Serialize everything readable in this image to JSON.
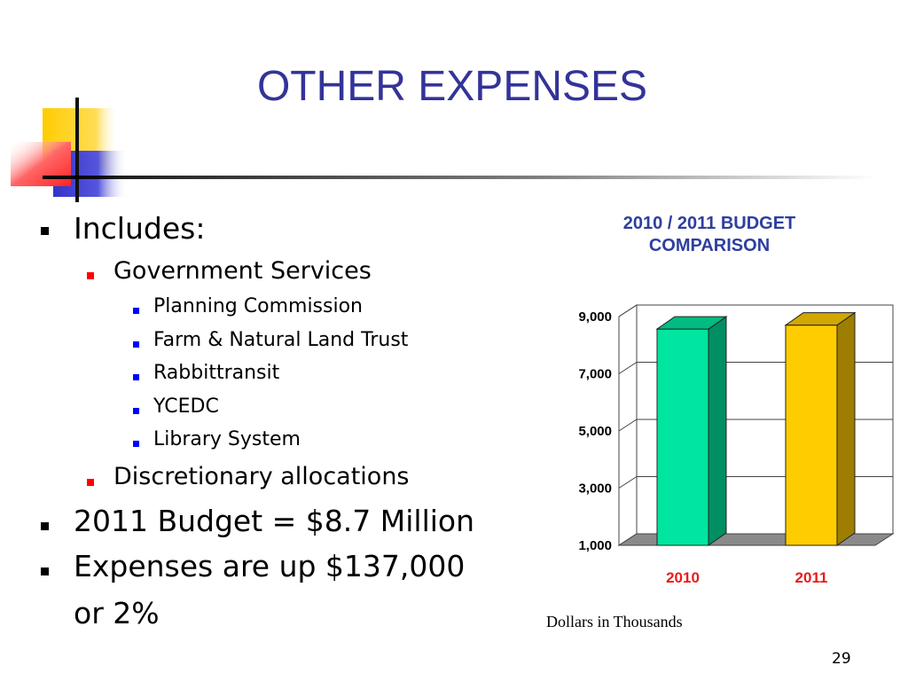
{
  "slide": {
    "title": "OTHER EXPENSES",
    "page_number": "29",
    "colors": {
      "title": "#333399",
      "accent_yellow": "#ffcc00",
      "accent_blue": "#3333cc",
      "accent_red": "#ff3333"
    }
  },
  "bullets": [
    {
      "level": 1,
      "text": "Includes:"
    },
    {
      "level": 2,
      "text": "Government Services"
    },
    {
      "level": 3,
      "text": "Planning Commission"
    },
    {
      "level": 3,
      "text": "Farm & Natural Land Trust"
    },
    {
      "level": 3,
      "text": "Rabbittransit"
    },
    {
      "level": 3,
      "text": "YCEDC"
    },
    {
      "level": 3,
      "text": "Library System"
    },
    {
      "level": 2,
      "text": "Discretionary allocations"
    },
    {
      "level": 1,
      "text": "2011 Budget = $8.7 Million"
    },
    {
      "level": 1,
      "text": "Expenses are up $137,000"
    },
    {
      "level": 1,
      "text": "or 2%",
      "continuation": true
    }
  ],
  "chart_data": {
    "type": "bar",
    "title_lines": [
      "2010 / 2011 BUDGET",
      "COMPARISON"
    ],
    "categories": [
      "2010",
      "2011"
    ],
    "values": [
      8563,
      8700
    ],
    "bar_colors": [
      "#00e5a0",
      "#ffcc00"
    ],
    "category_label_color": "#e81c1c",
    "y_ticks": [
      "9,000",
      "7,000",
      "5,000",
      "3,000",
      "1,000"
    ],
    "y_tick_values": [
      9000,
      7000,
      5000,
      3000,
      1000
    ],
    "ylim": [
      1000,
      9000
    ],
    "grid": true,
    "legend": "none",
    "caption": "Dollars in Thousands"
  }
}
